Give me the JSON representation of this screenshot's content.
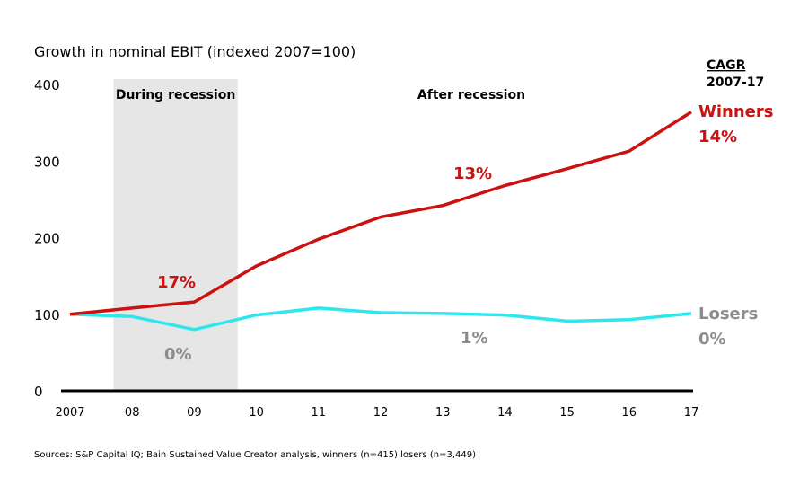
{
  "chart_data": {
    "type": "line",
    "title": "Growth in nominal EBIT (indexed 2007=100)",
    "x": [
      "2007",
      "08",
      "09",
      "10",
      "11",
      "12",
      "13",
      "14",
      "15",
      "16",
      "17"
    ],
    "ylim": [
      0,
      400
    ],
    "yticks": [
      "0",
      "100",
      "200",
      "300",
      "400"
    ],
    "grid": false,
    "series": [
      {
        "name": "Winners",
        "color": "#cc1111",
        "values": [
          100,
          108,
          116,
          163,
          198,
          227,
          242,
          268,
          290,
          313,
          364
        ]
      },
      {
        "name": "Losers",
        "color": "#2ee6ee",
        "values": [
          100,
          97,
          80,
          99,
          108,
          102,
          101,
          99,
          91,
          93,
          101
        ]
      }
    ],
    "shaded_region": {
      "label": "During recession",
      "from_index": 0.7,
      "to_index": 2.7,
      "color": "#e6e6e6"
    },
    "after_label": "After recession",
    "cagr_header": [
      "CAGR",
      "2007-17"
    ],
    "annotations": {
      "winners_recession": "17%",
      "winners_after": "13%",
      "winners_total": "14%",
      "losers_recession": "0%",
      "losers_after": "1%",
      "losers_total": "0%"
    },
    "source": "Sources: S&P Capital IQ; Bain Sustained Value Creator analysis, winners (n=415) losers (n=3,449)"
  }
}
